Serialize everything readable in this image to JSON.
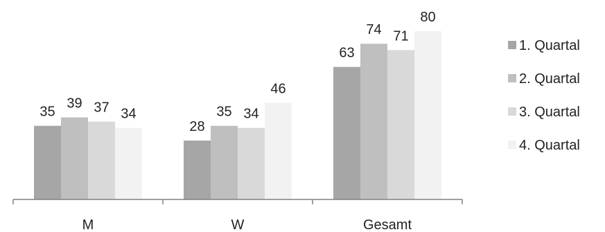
{
  "chart_data": {
    "type": "bar",
    "title": "",
    "xlabel": "",
    "ylabel": "",
    "ylim": [
      0,
      80
    ],
    "categories": [
      "M",
      "W",
      "Gesamt"
    ],
    "series": [
      {
        "name": "1. Quartal",
        "values": [
          35,
          28,
          63
        ],
        "color": "#a6a6a6"
      },
      {
        "name": "2. Quartal",
        "values": [
          39,
          35,
          74
        ],
        "color": "#bfbfbf"
      },
      {
        "name": "3. Quartal",
        "values": [
          37,
          34,
          71
        ],
        "color": "#d9d9d9"
      },
      {
        "name": "4. Quartal",
        "values": [
          34,
          46,
          80
        ],
        "color": "#f2f2f2"
      }
    ],
    "data_labels": true,
    "gridlines": false,
    "legend_position": "right",
    "axis_color": "#808080"
  }
}
